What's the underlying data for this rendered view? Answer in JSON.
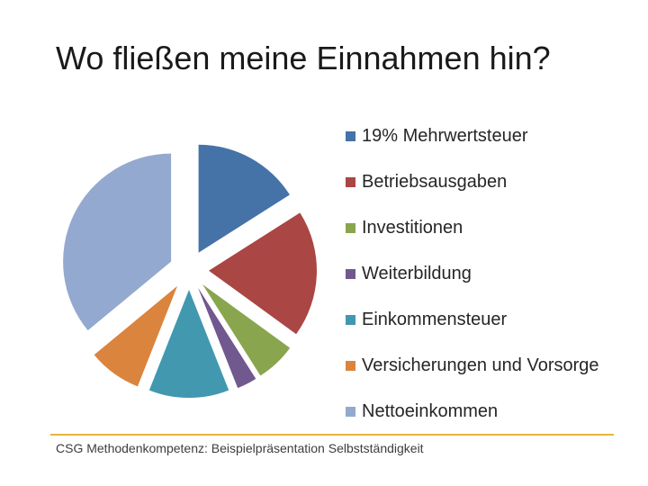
{
  "slide": {
    "title": "Wo fließen meine Einnahmen hin?",
    "footer": "CSG Methodenkompetenz: Beispielpräsentation Selbstständigkeit",
    "accent_color": "#e7b43c"
  },
  "chart_data": {
    "type": "pie",
    "title": "",
    "exploded": true,
    "legend_position": "right",
    "categories": [
      "19% Mehrwertsteuer",
      "Betriebsausgaben",
      "Investitionen",
      "Weiterbildung",
      "Einkommensteuer",
      "Versicherungen und Vorsorge",
      "Nettoeinkommen"
    ],
    "values": [
      16,
      19,
      6,
      3,
      12,
      8,
      36
    ],
    "colors": [
      "#4572a7",
      "#aa4643",
      "#89a54e",
      "#71588f",
      "#4198af",
      "#db843d",
      "#93a9cf"
    ]
  }
}
